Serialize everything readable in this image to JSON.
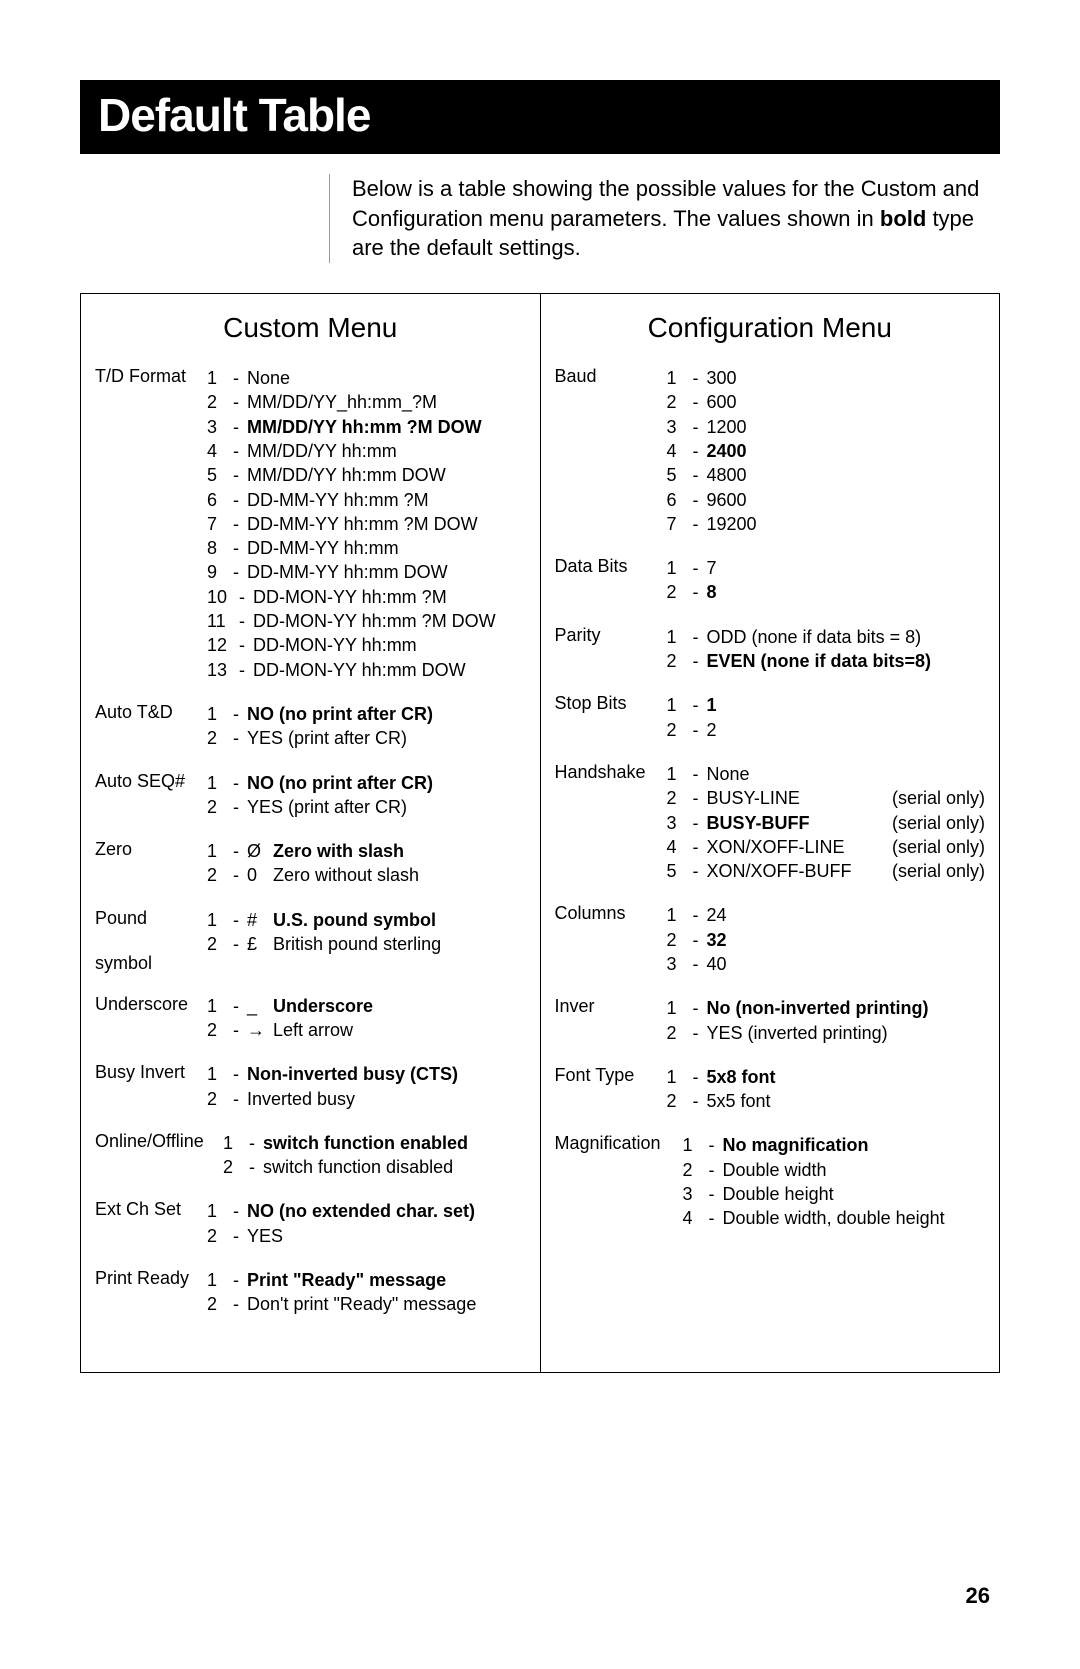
{
  "page_number": "26",
  "title": "Default Table",
  "intro_pre": "Below is a table showing the possible values for the Custom and Configuration menu parameters. The values shown in ",
  "intro_bold": "bold",
  "intro_post": " type are the default settings.",
  "custom_title": "Custom Menu",
  "config_title": "Configuration Menu",
  "custom": [
    {
      "label": "T/D Format",
      "opts": [
        {
          "n": "1",
          "t": "None"
        },
        {
          "n": "2",
          "t": "MM/DD/YY_hh:mm_?M"
        },
        {
          "n": "3",
          "t": "MM/DD/YY hh:mm ?M DOW",
          "bold": true
        },
        {
          "n": "4",
          "t": "MM/DD/YY hh:mm"
        },
        {
          "n": "5",
          "t": "MM/DD/YY hh:mm DOW"
        },
        {
          "n": "6",
          "t": "DD-MM-YY hh:mm ?M"
        },
        {
          "n": "7",
          "t": "DD-MM-YY hh:mm ?M DOW"
        },
        {
          "n": "8",
          "t": "DD-MM-YY hh:mm"
        },
        {
          "n": "9",
          "t": "DD-MM-YY hh:mm DOW"
        },
        {
          "n": "10",
          "t": "DD-MON-YY hh:mm ?M"
        },
        {
          "n": "11",
          "t": "DD-MON-YY hh:mm ?M DOW"
        },
        {
          "n": "12",
          "t": "DD-MON-YY hh:mm"
        },
        {
          "n": "13",
          "t": "DD-MON-YY hh:mm DOW"
        }
      ]
    },
    {
      "label": "Auto T&D",
      "opts": [
        {
          "n": "1",
          "t": "NO (no print after CR)",
          "bold": true
        },
        {
          "n": "2",
          "t": "YES (print after CR)"
        }
      ]
    },
    {
      "label": "Auto SEQ#",
      "opts": [
        {
          "n": "1",
          "t": "NO (no print after CR)",
          "bold": true
        },
        {
          "n": "2",
          "t": "YES (print after CR)"
        }
      ]
    },
    {
      "label": "Zero",
      "opts": [
        {
          "n": "1",
          "sym": "Ø",
          "t": "Zero with slash",
          "bold": true
        },
        {
          "n": "2",
          "sym": "0",
          "t": "Zero without slash"
        }
      ]
    },
    {
      "label": "Pound",
      "sublabel": "symbol",
      "opts": [
        {
          "n": "1",
          "sym": "#",
          "t": "U.S. pound symbol",
          "bold": true
        },
        {
          "n": "2",
          "sym": "£",
          "t": "British pound sterling"
        }
      ]
    },
    {
      "label": "Underscore",
      "opts": [
        {
          "n": "1",
          "sym": "_",
          "t": "Underscore",
          "bold": true
        },
        {
          "n": "2",
          "sym": "→",
          "t": "Left arrow"
        }
      ]
    },
    {
      "label": "Busy Invert",
      "opts": [
        {
          "n": "1",
          "t": "Non-inverted busy (CTS)",
          "bold": true
        },
        {
          "n": "2",
          "t": "Inverted busy"
        }
      ]
    },
    {
      "label": "Online/Offline",
      "wide": true,
      "opts": [
        {
          "n": "1",
          "t": "switch function enabled",
          "bold": true
        },
        {
          "n": "2",
          "t": "switch function disabled"
        }
      ]
    },
    {
      "label": "Ext Ch Set",
      "opts": [
        {
          "n": "1",
          "t": "NO (no extended char. set)",
          "bold": true
        },
        {
          "n": "2",
          "t": "YES"
        }
      ]
    },
    {
      "label": "Print Ready",
      "opts": [
        {
          "n": "1",
          "t": "Print \"Ready\" message",
          "bold": true
        },
        {
          "n": "2",
          "t": "Don't print \"Ready\" message"
        }
      ]
    }
  ],
  "config": [
    {
      "label": "Baud",
      "opts": [
        {
          "n": "1",
          "t": "300"
        },
        {
          "n": "2",
          "t": "600"
        },
        {
          "n": "3",
          "t": "1200"
        },
        {
          "n": "4",
          "t": "2400",
          "bold": true
        },
        {
          "n": "5",
          "t": "4800"
        },
        {
          "n": "6",
          "t": "9600"
        },
        {
          "n": "7",
          "t": "19200"
        }
      ]
    },
    {
      "label": "Data Bits",
      "opts": [
        {
          "n": "1",
          "t": "7"
        },
        {
          "n": "2",
          "t": "8",
          "bold": true
        }
      ]
    },
    {
      "label": "Parity",
      "opts": [
        {
          "n": "1",
          "t": "ODD (none if data bits = 8)"
        },
        {
          "n": "2",
          "t": "EVEN  (none  if  data  bits=8)",
          "bold": true
        }
      ]
    },
    {
      "label": "Stop Bits",
      "opts": [
        {
          "n": "1",
          "t": "1",
          "bold": true
        },
        {
          "n": "2",
          "t": "2"
        }
      ]
    },
    {
      "label": "Handshake",
      "opts": [
        {
          "n": "1",
          "t": "None"
        },
        {
          "n": "2",
          "t": "BUSY-LINE",
          "note": "(serial only)"
        },
        {
          "n": "3",
          "t": "BUSY-BUFF",
          "bold": true,
          "note": "(serial only)"
        },
        {
          "n": "4",
          "t": "XON/XOFF-LINE",
          "note": "(serial only)"
        },
        {
          "n": "5",
          "t": "XON/XOFF-BUFF",
          "note": "(serial only)"
        }
      ]
    },
    {
      "label": "Columns",
      "opts": [
        {
          "n": "1",
          "t": "24"
        },
        {
          "n": "2",
          "t": "32",
          "bold": true
        },
        {
          "n": "3",
          "t": "40"
        }
      ]
    },
    {
      "label": "Inver",
      "opts": [
        {
          "n": "1",
          "t": "No (non-inverted printing)",
          "bold": true
        },
        {
          "n": "2",
          "t": "YES (inverted printing)"
        }
      ]
    },
    {
      "label": "Font Type",
      "opts": [
        {
          "n": "1",
          "t": "5x8 font",
          "bold": true
        },
        {
          "n": "2",
          "t": "5x5 font"
        }
      ]
    },
    {
      "label": "Magnification",
      "wide": true,
      "opts": [
        {
          "n": "1",
          "t": "No magnification",
          "bold": true
        },
        {
          "n": "2",
          "t": "Double width"
        },
        {
          "n": "3",
          "t": "Double height"
        },
        {
          "n": "4",
          "t": "Double width, double height"
        }
      ]
    }
  ]
}
